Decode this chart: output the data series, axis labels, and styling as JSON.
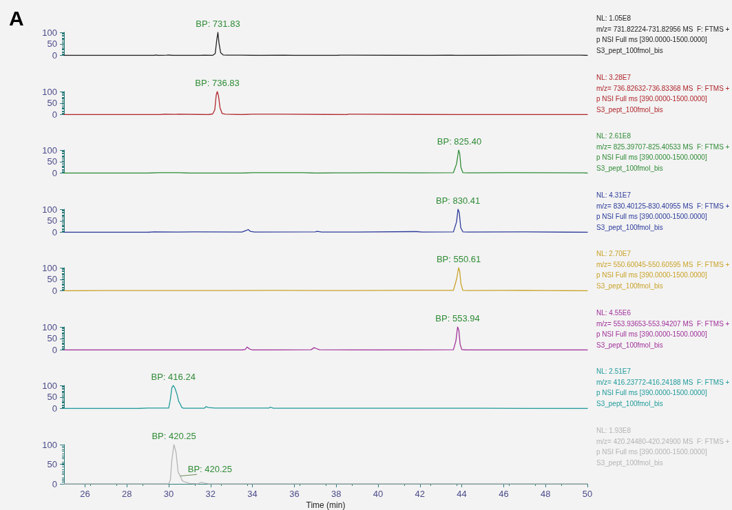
{
  "chart_data": [
    {
      "type": "line",
      "title": "A",
      "marker": "none",
      "xlim": [
        25,
        50
      ],
      "ylim": [
        0,
        100
      ],
      "yticks": [
        0,
        50,
        100
      ],
      "tick_labels": "y",
      "series": [
        {
          "color": "#222222",
          "x": [
            25,
            29.3,
            29.4,
            29.5,
            29.9,
            30,
            30.2,
            31.5,
            31.7,
            32.1,
            32.22,
            32.3,
            32.35,
            32.4,
            32.48,
            32.6,
            32.8,
            33.5,
            34.3,
            35.5,
            36,
            38,
            38.2,
            42.5,
            43.5,
            43.7,
            47,
            49.7,
            50
          ],
          "values": [
            0,
            0,
            2,
            0,
            1,
            2,
            0,
            0,
            1,
            0,
            8,
            70,
            100,
            55,
            12,
            2,
            1,
            1,
            0,
            1,
            0,
            0,
            1,
            0,
            1,
            0,
            1,
            1,
            0
          ]
        }
      ],
      "annotations": [
        {
          "text": "BP: 731.83",
          "x": 32.35,
          "y": 100
        },
        "NL: 1.05E8",
        "m/z= 731.82224-731.82956 MS  F: FTMS +",
        "p NSI Full ms [390.0000-1500.0000]",
        "S3_pept_100fmol_bis"
      ]
    },
    {
      "type": "line",
      "marker": "none",
      "xlim": [
        25,
        50
      ],
      "ylim": [
        0,
        100
      ],
      "yticks": [
        0,
        50,
        100
      ],
      "tick_labels": "y",
      "series": [
        {
          "color": "#b0262c",
          "x": [
            25,
            29.6,
            29.8,
            30.3,
            30.5,
            31.9,
            32.1,
            32.2,
            32.27,
            32.32,
            32.38,
            32.45,
            32.55,
            32.7,
            33,
            33.5,
            34,
            35.5,
            38.5,
            38.6,
            43.6,
            49.5,
            50
          ],
          "values": [
            0,
            0,
            2,
            1,
            2,
            0,
            3,
            20,
            85,
            100,
            80,
            30,
            5,
            2,
            1,
            0,
            2,
            2,
            0,
            2,
            0,
            0,
            0
          ]
        }
      ],
      "annotations": [
        {
          "text": "BP: 736.83",
          "x": 32.32,
          "y": 100
        },
        "NL: 3.28E7",
        "m/z= 736.82632-736.83368 MS  F: FTMS +",
        "p NSI Full ms [390.0000-1500.0000]",
        "S3_pept_100fmol_bis"
      ]
    },
    {
      "type": "line",
      "marker": "none",
      "xlim": [
        25,
        50
      ],
      "ylim": [
        0,
        100
      ],
      "yticks": [
        0,
        50,
        100
      ],
      "tick_labels": "y",
      "series": [
        {
          "color": "#2e8b35",
          "x": [
            25,
            29,
            29.5,
            30.5,
            31,
            33.5,
            34,
            36.5,
            37,
            38,
            40,
            42,
            43.6,
            43.75,
            43.85,
            43.9,
            43.96,
            44.05,
            44.3,
            46,
            49.8,
            50
          ],
          "values": [
            0,
            0,
            2,
            2,
            0,
            0,
            2,
            2,
            0,
            1,
            2,
            1,
            2,
            40,
            100,
            85,
            25,
            2,
            1,
            2,
            1,
            0
          ]
        }
      ],
      "annotations": [
        {
          "text": "BP: 825.40",
          "x": 43.88,
          "y": 100
        },
        "NL: 2.61E8",
        "m/z= 825.39707-825.40533 MS  F: FTMS +",
        "p NSI Full ms [390.0000-1500.0000]",
        "S3_pept_100fmol_bis"
      ]
    },
    {
      "type": "line",
      "marker": "none",
      "xlim": [
        25,
        50
      ],
      "ylim": [
        0,
        100
      ],
      "yticks": [
        0,
        50,
        100
      ],
      "tick_labels": "y",
      "series": [
        {
          "color": "#2b3a9a",
          "x": [
            25,
            29,
            29.3,
            30.5,
            31.2,
            33.5,
            33.7,
            33.8,
            33.9,
            34.1,
            37,
            37.1,
            37.3,
            39,
            41.7,
            41.85,
            42.1,
            43.6,
            43.75,
            43.82,
            43.88,
            43.95,
            44.05,
            44.3,
            47,
            50
          ],
          "values": [
            0,
            0,
            2,
            1,
            2,
            1,
            8,
            12,
            4,
            1,
            2,
            4,
            1,
            1,
            3,
            3,
            1,
            2,
            45,
            100,
            85,
            20,
            2,
            1,
            2,
            0
          ]
        }
      ],
      "annotations": [
        {
          "text": "BP: 830.41",
          "x": 43.82,
          "y": 100
        },
        "NL: 4.31E7",
        "m/z= 830.40125-830.40955 MS  F: FTMS +",
        "p NSI Full ms [390.0000-1500.0000]",
        "S3_pept_100fmol_bis"
      ]
    },
    {
      "type": "line",
      "marker": "none",
      "xlim": [
        25,
        50
      ],
      "ylim": [
        0,
        100
      ],
      "yticks": [
        0,
        50,
        100
      ],
      "tick_labels": "y",
      "series": [
        {
          "color": "#c9a227",
          "x": [
            25,
            27,
            29,
            31,
            33,
            35,
            37,
            39,
            41,
            43.6,
            43.75,
            43.85,
            43.9,
            43.96,
            44.05,
            44.3,
            46,
            48,
            50
          ],
          "values": [
            0,
            1,
            1,
            1,
            1,
            2,
            1,
            1,
            2,
            2,
            50,
            100,
            85,
            30,
            2,
            1,
            2,
            1,
            0
          ]
        }
      ],
      "annotations": [
        {
          "text": "BP: 550.61",
          "x": 43.85,
          "y": 100
        },
        "NL: 2.70E7",
        "m/z= 550.60045-550.60595 MS  F: FTMS +",
        "p NSI Full ms [390.0000-1500.0000]",
        "S3_pept_100fmol_bis"
      ]
    },
    {
      "type": "line",
      "marker": "none",
      "xlim": [
        25,
        50
      ],
      "ylim": [
        0,
        100
      ],
      "yticks": [
        0,
        50,
        100
      ],
      "tick_labels": "y",
      "series": [
        {
          "color": "#a0309a",
          "x": [
            25,
            33.5,
            33.65,
            33.75,
            33.85,
            34,
            36.8,
            36.95,
            37.05,
            37.2,
            40,
            43.6,
            43.72,
            43.8,
            43.86,
            43.92,
            44,
            44.2,
            50
          ],
          "values": [
            0,
            0,
            2,
            13,
            5,
            0,
            1,
            10,
            6,
            1,
            0,
            1,
            40,
            100,
            85,
            25,
            2,
            0,
            0
          ]
        }
      ],
      "annotations": [
        {
          "text": "BP: 553.94",
          "x": 43.8,
          "y": 100
        },
        "NL: 4.55E6",
        "m/z= 553.93653-553.94207 MS  F: FTMS +",
        "p NSI Full ms [390.0000-1500.0000]",
        "S3_pept_100fmol_bis"
      ]
    },
    {
      "type": "line",
      "marker": "none",
      "xlim": [
        25,
        50
      ],
      "ylim": [
        0,
        100
      ],
      "yticks": [
        0,
        50,
        100
      ],
      "tick_labels": "y",
      "series": [
        {
          "color": "#1f9a9a",
          "x": [
            25,
            28.5,
            29,
            30,
            30.08,
            30.15,
            30.22,
            30.3,
            30.4,
            30.48,
            30.55,
            30.62,
            30.7,
            31,
            31.7,
            31.78,
            31.9,
            32.2,
            34,
            34.8,
            34.85,
            35,
            40,
            45,
            50
          ],
          "values": [
            0,
            0,
            2,
            2,
            40,
            90,
            100,
            88,
            60,
            30,
            20,
            5,
            1,
            1,
            1,
            8,
            4,
            2,
            2,
            2,
            6,
            1,
            1,
            1,
            0
          ]
        }
      ],
      "annotations": [
        {
          "text": "BP: 416.24",
          "x": 30.22,
          "y": 100
        },
        "NL: 2.51E7",
        "m/z= 416.23772-416.24188 MS  F: FTMS +",
        "p NSI Full ms [390.0000-1500.0000]",
        "S3_pept_100fmol_bis"
      ]
    },
    {
      "type": "line",
      "marker": "none",
      "xlim": [
        25,
        50
      ],
      "ylim": [
        0,
        100
      ],
      "xticks": [
        26,
        28,
        30,
        32,
        34,
        36,
        38,
        40,
        42,
        44,
        46,
        48,
        50
      ],
      "yticks": [
        0,
        50,
        100
      ],
      "xlabel": "Time (min)",
      "series": [
        {
          "color": "#b4b4b4",
          "x": [
            25,
            30,
            30.08,
            30.15,
            30.25,
            30.35,
            30.45,
            30.55,
            30.65,
            30.8,
            31,
            31.4,
            31.55,
            31.7,
            31.9,
            40,
            50
          ],
          "values": [
            0,
            0,
            10,
            60,
            100,
            80,
            30,
            20,
            8,
            4,
            1,
            0,
            4,
            2,
            0,
            0,
            0
          ]
        }
      ],
      "annotations": [
        {
          "text": "BP: 420.25",
          "x": 30.25,
          "y": 100
        },
        {
          "text": "BP: 420.25",
          "x": 30.55,
          "y": 20
        },
        "NL: 1.93E8",
        "m/z= 420.24480-420.24900 MS  F: FTMS +",
        "p NSI Full ms [390.0000-1500.0000]",
        "S3_pept_100fmol_bis"
      ]
    }
  ]
}
